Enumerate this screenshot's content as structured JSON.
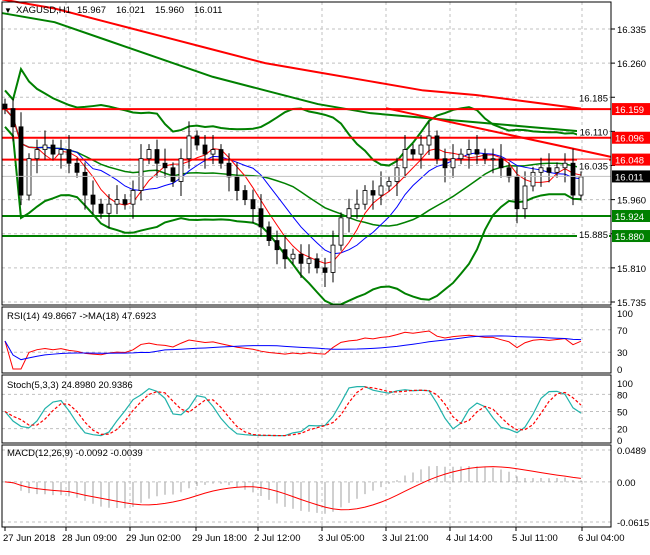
{
  "title": {
    "symbol": "XAGUSD,H1",
    "open": "15.967",
    "high": "16.021",
    "low": "15.960",
    "close": "16.011"
  },
  "chart_data": [
    {
      "type": "candlestick",
      "name": "XAGUSD,H1",
      "closes": [
        16.16,
        16.12,
        15.97,
        16.05,
        16.07,
        16.08,
        16.06,
        16.07,
        16.04,
        16.02,
        15.97,
        15.95,
        15.93,
        15.95,
        15.96,
        15.95,
        15.98,
        16.05,
        16.07,
        16.04,
        16.03,
        16.0,
        16.05,
        16.1,
        16.08,
        16.06,
        16.07,
        16.04,
        16.01,
        15.98,
        15.96,
        15.94,
        15.9,
        15.87,
        15.85,
        15.83,
        15.84,
        15.82,
        15.83,
        15.81,
        15.8,
        15.86,
        15.92,
        15.94,
        15.95,
        15.98,
        15.97,
        15.99,
        16.0,
        16.03,
        16.07,
        16.06,
        16.08,
        16.1,
        16.05,
        16.03,
        16.05,
        16.06,
        16.07,
        16.06,
        16.05,
        16.05,
        16.03,
        16.01,
        15.94,
        15.99,
        16.02,
        16.03,
        16.02,
        16.03,
        16.04,
        15.97,
        16.01
      ],
      "ylim": [
        15.72,
        16.39
      ],
      "y_ticks": [
        "16.335",
        "16.260",
        "16.185",
        "16.110",
        "16.035",
        "15.960",
        "15.885",
        "15.810",
        "15.735"
      ],
      "x_ticks": [
        "27 Jun 2018",
        "28 Jun 09:00",
        "29 Jun 02:00",
        "29 Jun 18:00",
        "2 Jul 12:00",
        "3 Jul 05:00",
        "3 Jul 21:00",
        "4 Jul 14:00",
        "5 Jul 11:00",
        "6 Jul 04:00"
      ],
      "current_price": "16.011",
      "resistance_levels": [
        "16.159",
        "16.096",
        "16.048"
      ],
      "support_levels": [
        "15.924",
        "15.880"
      ],
      "trendline": {
        "start_price": 16.161,
        "end_price": 16.054
      },
      "long_ma_red": [
        16.4,
        16.38,
        16.35,
        16.32,
        16.29,
        16.26,
        16.24,
        16.22,
        16.2,
        16.19,
        16.175,
        16.16
      ],
      "long_ma_green": [
        16.37,
        16.35,
        16.31,
        16.27,
        16.23,
        16.2,
        16.17,
        16.15,
        16.14,
        16.13,
        16.12,
        16.11
      ],
      "colors": {
        "bull": "#000000",
        "bear": "#000000",
        "ma_fast": "#ff0000",
        "ma_slow": "#0000ff",
        "bands": "#008000",
        "resistance": "#ff0000",
        "support": "#008000"
      }
    },
    {
      "type": "line",
      "label": "RSI(14) 49.8667  ->MA(18) 47.6923",
      "ylim": [
        0,
        100
      ],
      "y_ticks": [
        "100",
        "70",
        "30",
        "0"
      ]
    },
    {
      "type": "line",
      "label": "Stoch(5,3,3) 24.8980 20.9386",
      "ylim": [
        0,
        100
      ],
      "y_ticks": [
        "100",
        "80",
        "50",
        "20",
        "0"
      ]
    },
    {
      "type": "bar",
      "label": "MACD(12,26,9) -0.0092 -0.0039",
      "ylim": [
        -0.0615,
        0.0489
      ],
      "y_ticks": [
        "0.0489",
        "0.00",
        "-0.0615"
      ]
    }
  ]
}
